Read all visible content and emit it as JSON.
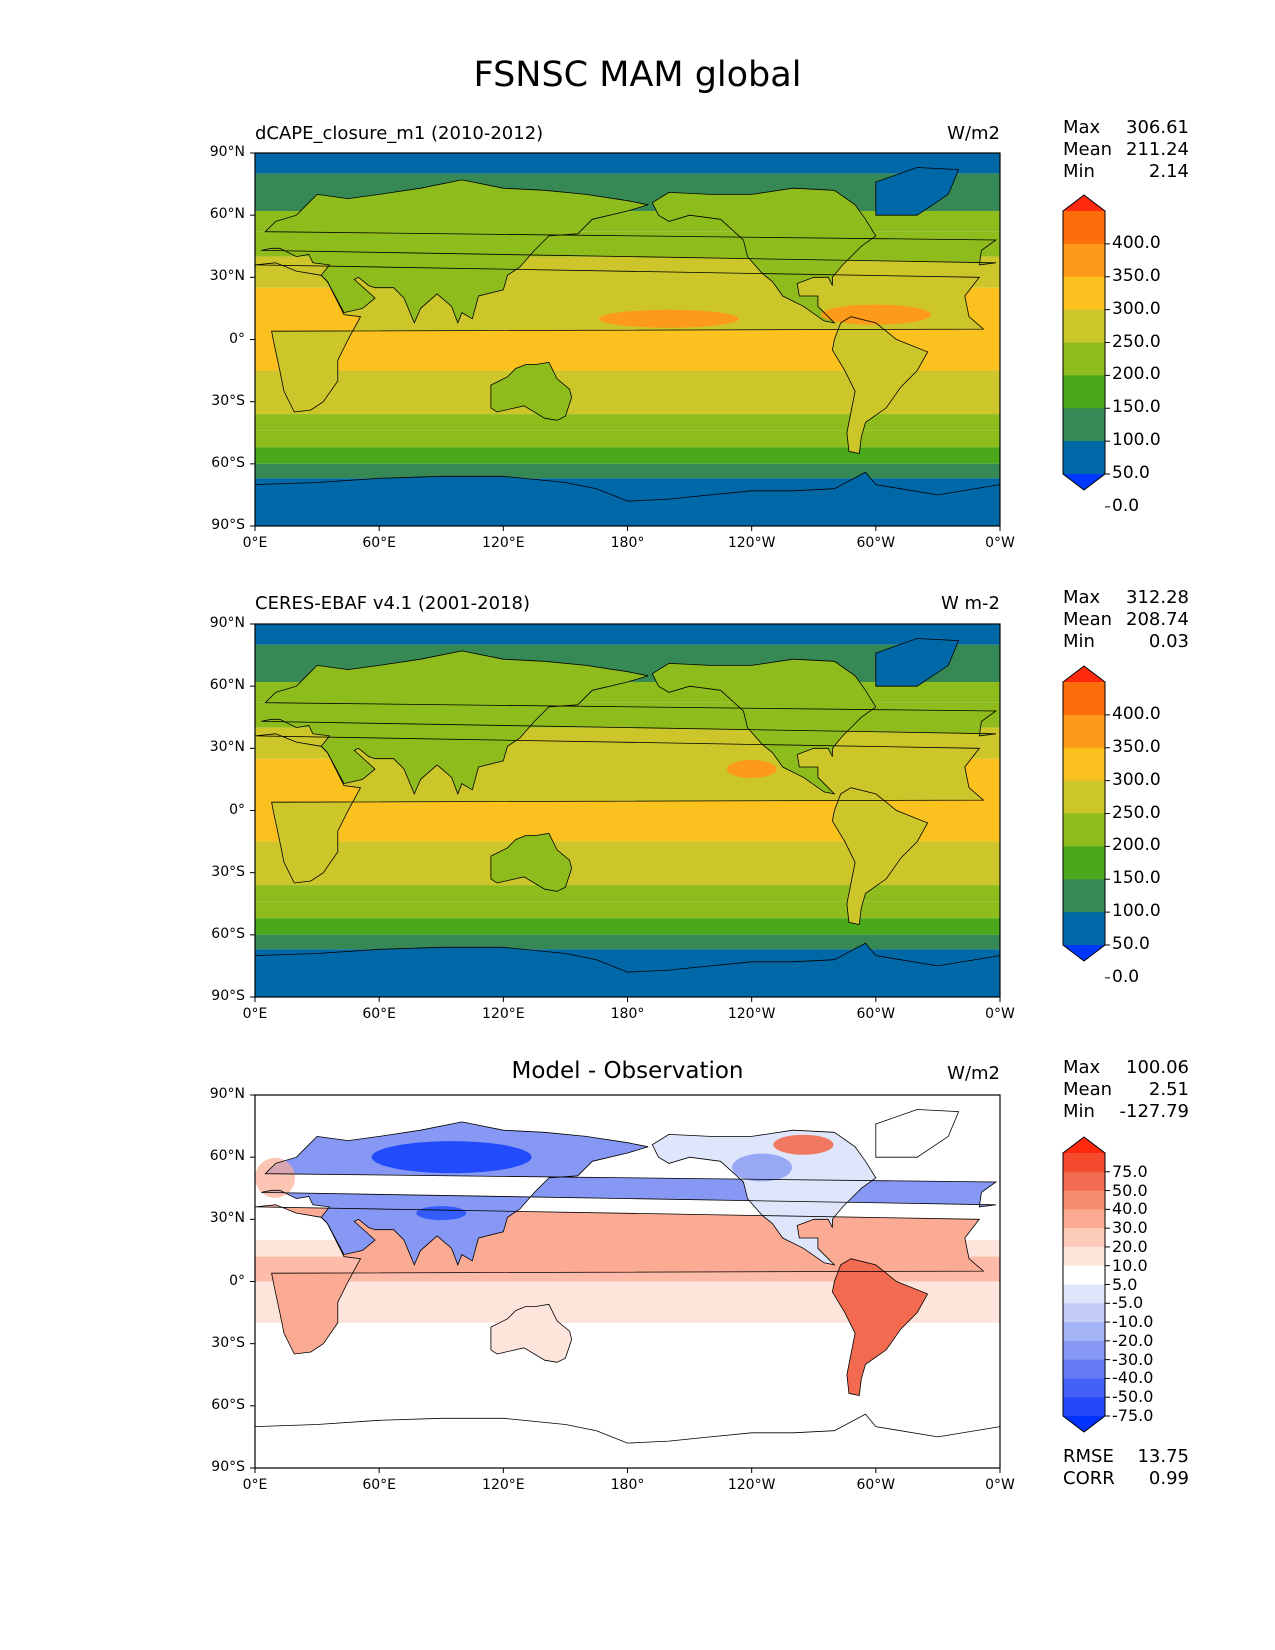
{
  "figure": {
    "title": "FSNSC MAM global"
  },
  "panels": [
    {
      "id": "model",
      "title_left": "dCAPE_closure_m1 (2010-2012)",
      "title_center": "",
      "units": "W/m2",
      "stats": [
        {
          "label": "Max",
          "value": "306.61"
        },
        {
          "label": "Mean",
          "value": "211.24"
        },
        {
          "label": "Min",
          "value": "2.14"
        }
      ],
      "colorbar": {
        "labels": [
          "400.0",
          "350.0",
          "300.0",
          "250.0",
          "200.0",
          "150.0",
          "100.0",
          "50.0",
          "0.0"
        ],
        "colors": [
          "#ff2a0e",
          "#fe6d0b",
          "#fd9a19",
          "#fbc11f",
          "#cdc62a",
          "#8fbc1d",
          "#4aa81b",
          "#368855",
          "#0068a6",
          "#0037fe"
        ]
      }
    },
    {
      "id": "obs",
      "title_left": "CERES-EBAF v4.1 (2001-2018)",
      "title_center": "",
      "units": "W m-2",
      "stats": [
        {
          "label": "Max",
          "value": "312.28"
        },
        {
          "label": "Mean",
          "value": "208.74"
        },
        {
          "label": "Min",
          "value": "0.03"
        }
      ],
      "colorbar": {
        "labels": [
          "400.0",
          "350.0",
          "300.0",
          "250.0",
          "200.0",
          "150.0",
          "100.0",
          "50.0",
          "0.0"
        ],
        "colors": [
          "#ff2a0e",
          "#fe6d0b",
          "#fd9a19",
          "#fbc11f",
          "#cdc62a",
          "#8fbc1d",
          "#4aa81b",
          "#368855",
          "#0068a6",
          "#0037fe"
        ]
      }
    },
    {
      "id": "diff",
      "title_left": "",
      "title_center": "Model - Observation",
      "units": "W/m2",
      "stats": [
        {
          "label": "Max",
          "value": "100.06"
        },
        {
          "label": "Mean",
          "value": "2.51"
        },
        {
          "label": "Min",
          "value": "-127.79"
        }
      ],
      "error_stats": [
        {
          "label": "RMSE",
          "value": "13.75"
        },
        {
          "label": "CORR",
          "value": "0.99"
        }
      ],
      "colorbar": {
        "labels": [
          "75.0",
          "50.0",
          "40.0",
          "30.0",
          "20.0",
          "10.0",
          "5.0",
          "-5.0",
          "-10.0",
          "-20.0",
          "-30.0",
          "-40.0",
          "-50.0",
          "-75.0"
        ],
        "colors": [
          "#ff2a0e",
          "#f44a2e",
          "#f26b50",
          "#f78c70",
          "#fbab93",
          "#fccab8",
          "#fde5dc",
          "#ffffff",
          "#dfe6fb",
          "#c3cdf8",
          "#a5b4f6",
          "#8698f4",
          "#667cf4",
          "#4461f7",
          "#2547fa",
          "#0033fe"
        ]
      }
    }
  ],
  "axes": {
    "y_ticks": [
      "90°N",
      "60°N",
      "30°N",
      "0°",
      "30°S",
      "60°S",
      "90°S"
    ],
    "x_ticks": [
      "0°E",
      "60°E",
      "120°E",
      "180°",
      "120°W",
      "60°W",
      "0°W"
    ]
  },
  "map_colors": {
    "ocean_tropical": "#fbc11f",
    "ocean_subtropical": "#cdc62a",
    "ocean_mid": "#8fbc1d",
    "ocean_southern": "#4aa81b",
    "band_60s": "#368855",
    "polar": "#0068a6",
    "max_region": "#fd9a19",
    "diff_pos_light": "#fde5dc",
    "diff_pos_mid": "#fbab93",
    "diff_pos_strong": "#f26b50",
    "diff_neg_light": "#dfe6fb",
    "diff_neg_mid": "#8698f4",
    "diff_neg_strong": "#0033fe"
  }
}
